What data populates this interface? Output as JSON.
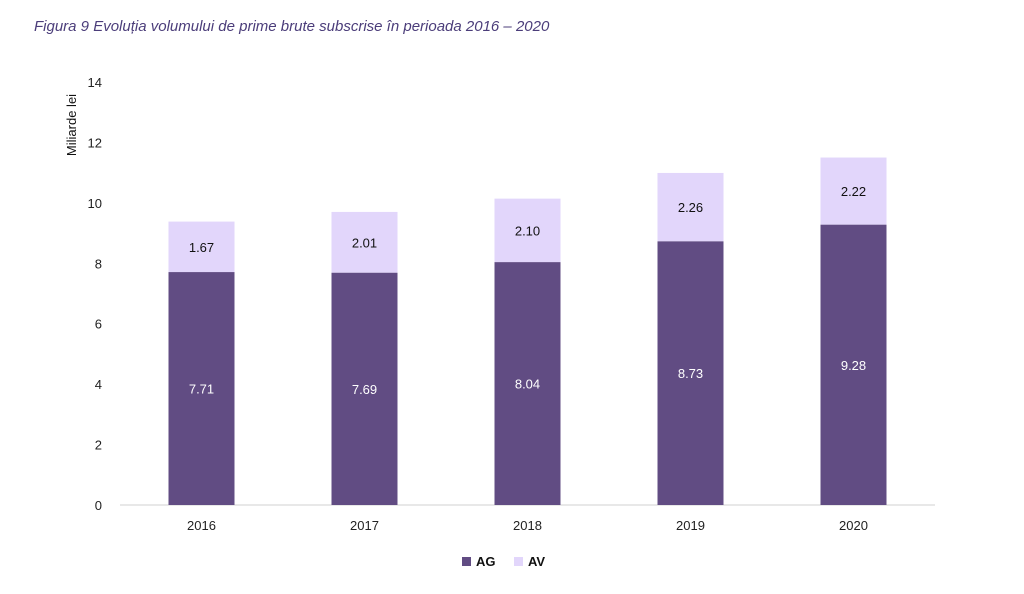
{
  "title_prefix": "Figura 9",
  "title_text": "Evoluția volumului de prime brute subscrise în perioada 2016 – 2020",
  "chart_data": {
    "type": "bar",
    "stacked": true,
    "categories": [
      "2016",
      "2017",
      "2018",
      "2019",
      "2020"
    ],
    "series": [
      {
        "name": "AG",
        "values": [
          7.71,
          7.69,
          8.04,
          8.73,
          9.28
        ],
        "color": "#614c83",
        "label_color": "#ffffff"
      },
      {
        "name": "AV",
        "values": [
          1.67,
          2.01,
          2.1,
          2.26,
          2.22
        ],
        "color": "#e2d6fb",
        "label_color": "#111111"
      }
    ],
    "ylabel": "Miliarde lei",
    "ylim": [
      0,
      14
    ],
    "yticks": [
      0,
      2,
      4,
      6,
      8,
      10,
      12,
      14
    ],
    "grid": false,
    "legend_position": "bottom-center"
  }
}
